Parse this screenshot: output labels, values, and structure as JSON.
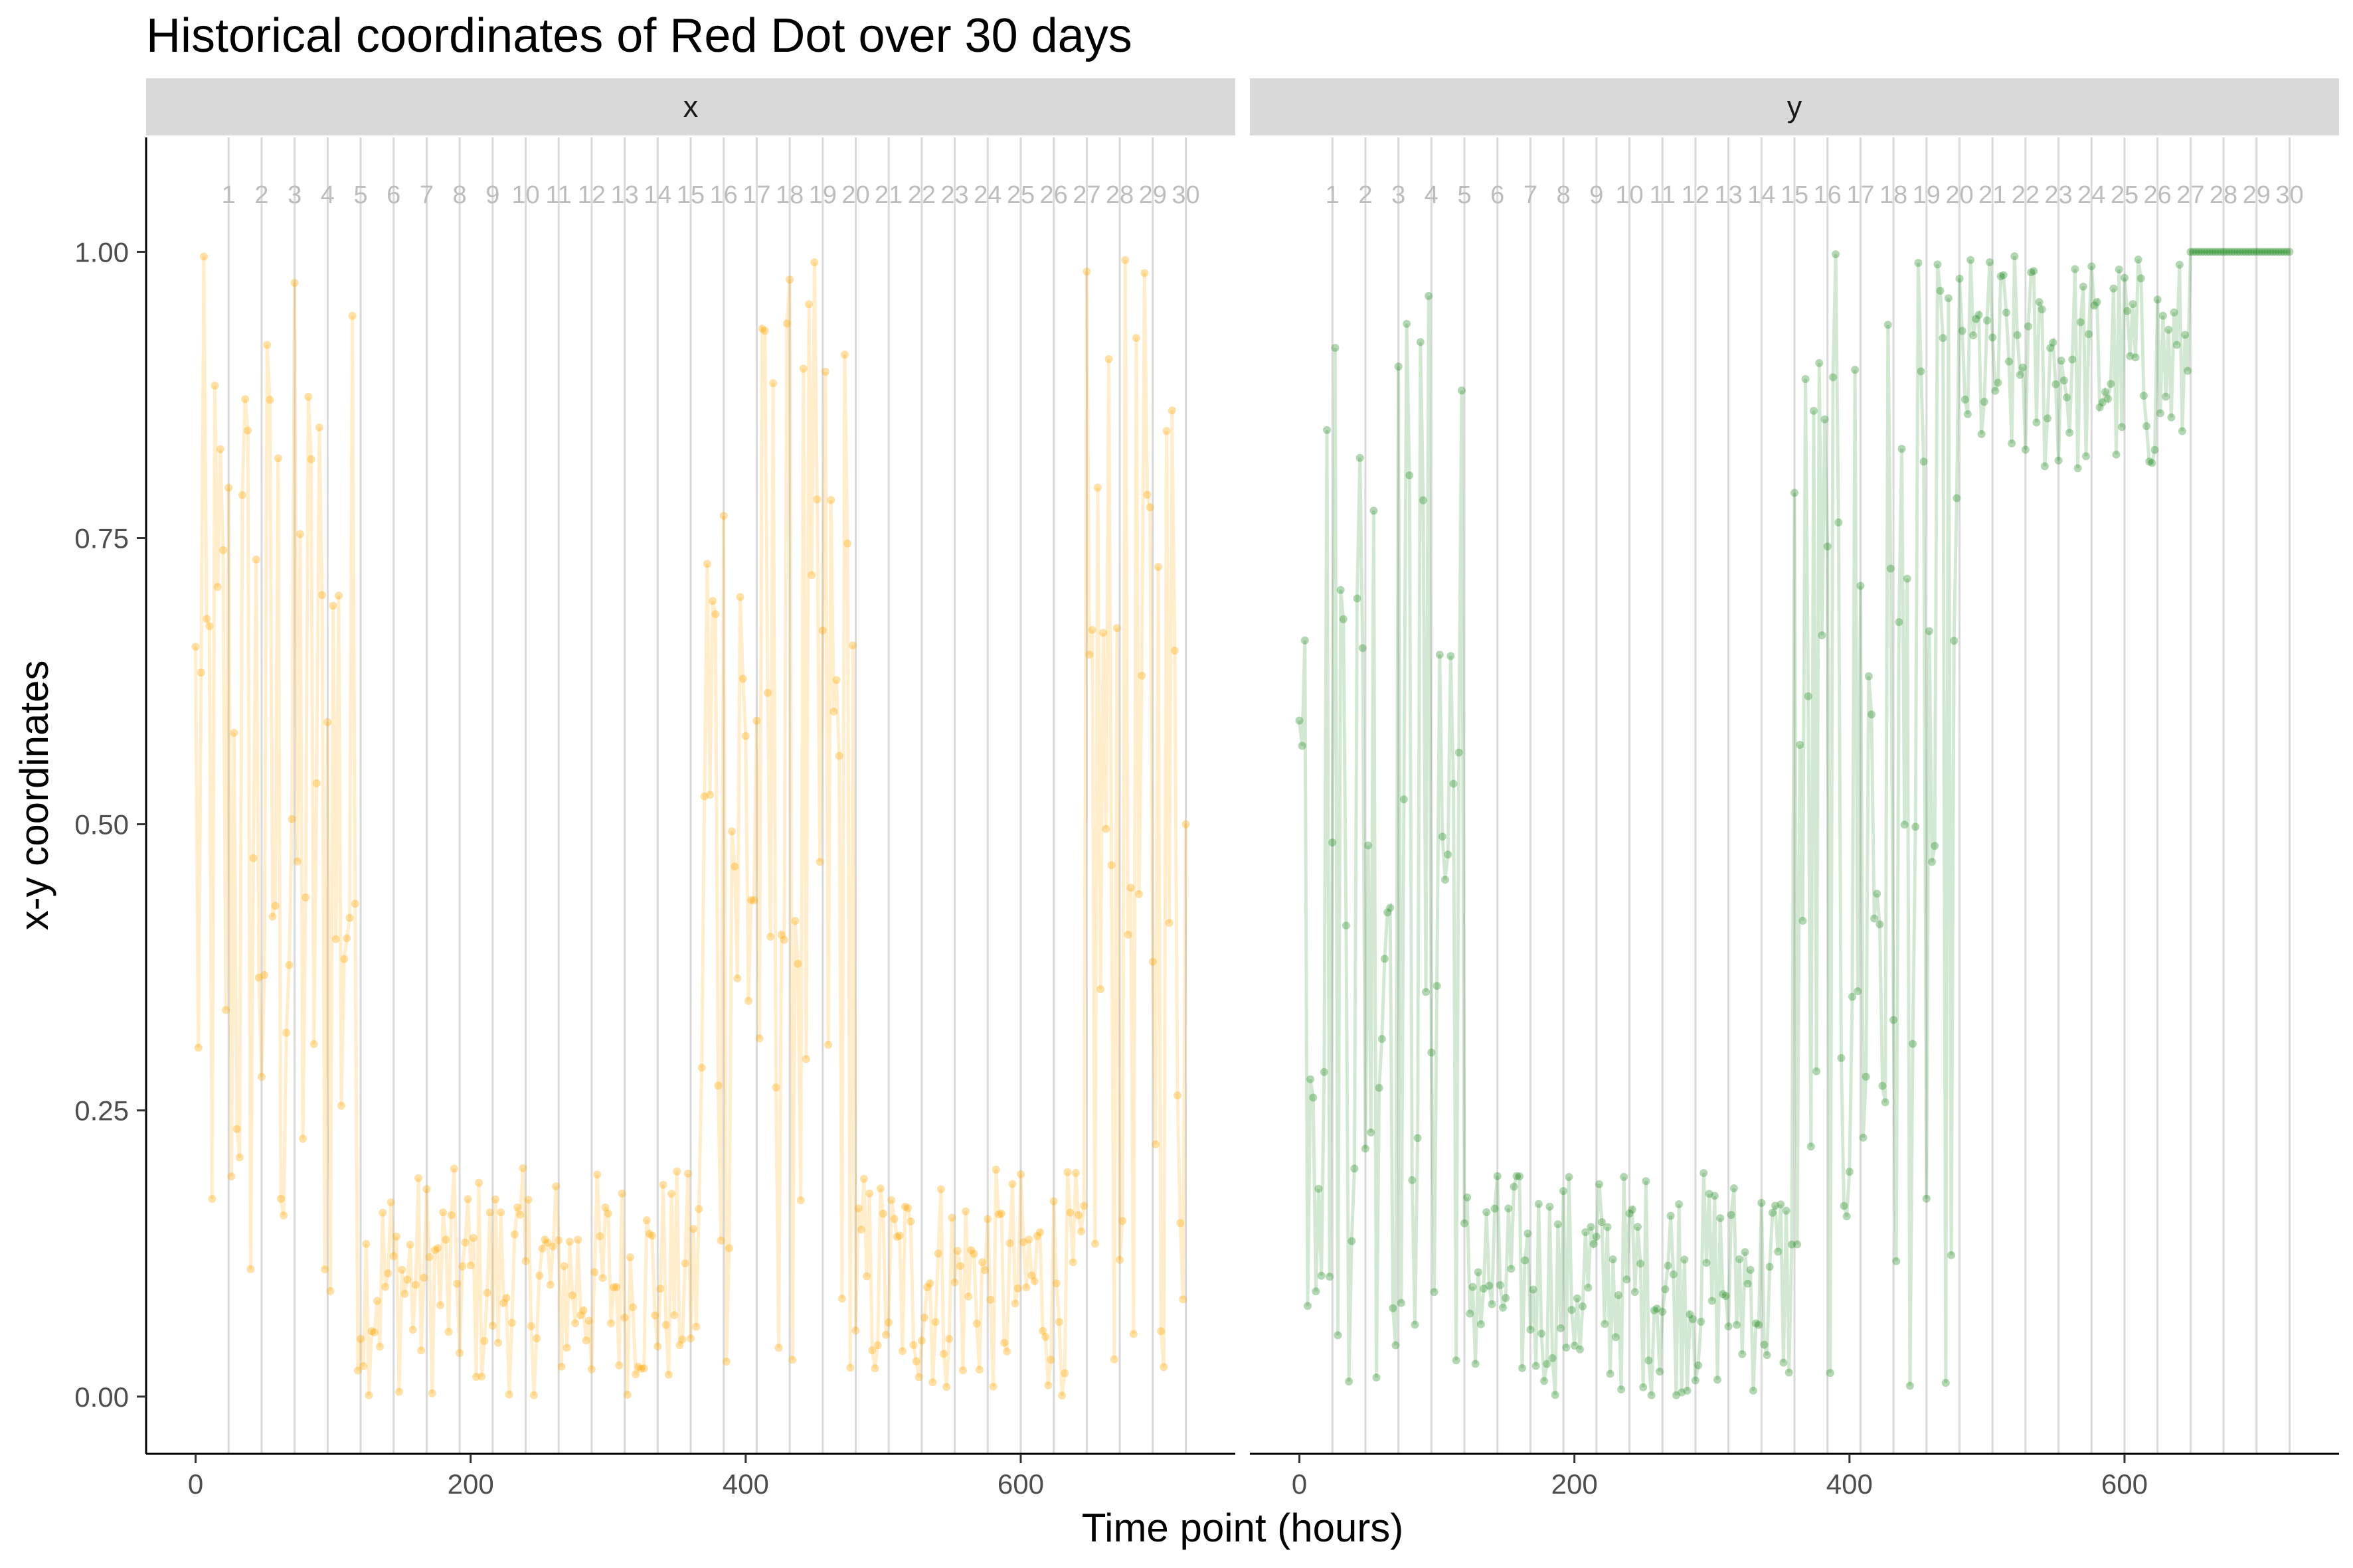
{
  "chart_data": {
    "type": "line",
    "title": "Historical coordinates of Red Dot over 30 days",
    "xlabel": "Time point (hours)",
    "ylabel": "x-y coordinates",
    "xlim": [
      -36,
      756
    ],
    "ylim": [
      -0.05,
      1.1
    ],
    "x_ticks": [
      "0",
      "200",
      "400",
      "600"
    ],
    "y_ticks": [
      "0.00",
      "0.25",
      "0.50",
      "0.75",
      "1.00"
    ],
    "x_tick_values": [
      0,
      200,
      400,
      600
    ],
    "y_tick_values": [
      0,
      0.25,
      0.5,
      0.75,
      1.0
    ],
    "day_lines": {
      "hours": [
        24,
        48,
        72,
        96,
        120,
        144,
        168,
        192,
        216,
        240,
        264,
        288,
        312,
        336,
        360,
        384,
        408,
        432,
        456,
        480,
        504,
        528,
        552,
        576,
        600,
        624,
        648,
        672,
        696,
        720
      ],
      "labels": [
        "1",
        "2",
        "3",
        "4",
        "5",
        "6",
        "7",
        "8",
        "9",
        "10",
        "11",
        "12",
        "13",
        "14",
        "15",
        "16",
        "17",
        "18",
        "19",
        "20",
        "21",
        "22",
        "23",
        "24",
        "25",
        "26",
        "27",
        "28",
        "29",
        "30"
      ],
      "label_y": 1.05,
      "color": "#d9d9d9"
    },
    "grid": false,
    "legend": "none",
    "facets": [
      "x",
      "y"
    ],
    "series": [
      {
        "facet": "x",
        "color": "#ffa500",
        "segments": [
          {
            "x0": 0,
            "x1": 120,
            "low": 0.0,
            "high": 1.0
          },
          {
            "x0": 120,
            "x1": 368,
            "low": 0.0,
            "high": 0.2
          },
          {
            "x0": 368,
            "x1": 480,
            "low": 0.0,
            "high": 1.0
          },
          {
            "x0": 480,
            "x1": 648,
            "low": 0.0,
            "high": 0.2
          },
          {
            "x0": 648,
            "x1": 720,
            "low": 0.0,
            "high": 1.0
          }
        ]
      },
      {
        "facet": "y",
        "color": "#228b22",
        "segments": [
          {
            "x0": 0,
            "x1": 120,
            "low": 0.0,
            "high": 1.0
          },
          {
            "x0": 120,
            "x1": 360,
            "low": 0.0,
            "high": 0.2
          },
          {
            "x0": 360,
            "x1": 480,
            "low": 0.0,
            "high": 1.0
          },
          {
            "x0": 480,
            "x1": 648,
            "low": 0.8,
            "high": 1.0
          },
          {
            "x0": 648,
            "x1": 720,
            "low": 1.0,
            "high": 1.0
          }
        ]
      }
    ]
  }
}
